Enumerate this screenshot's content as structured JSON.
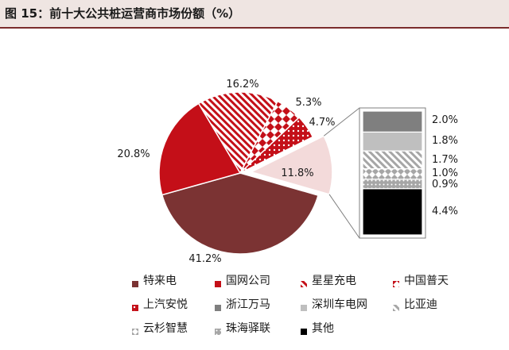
{
  "figure": {
    "title": "图 15：前十大公共桩运营商市场份额（%）"
  },
  "chart_data": {
    "type": "pie",
    "title": "图 15：前十大公共桩运营商市场份额（%）",
    "unit": "%",
    "slices": [
      {
        "name": "特来电",
        "value": 41.2,
        "label": "41.2%",
        "color": "#7b3333",
        "pattern": "solid"
      },
      {
        "name": "国网公司",
        "value": 20.8,
        "label": "20.8%",
        "color": "#c40f18",
        "pattern": "solid"
      },
      {
        "name": "星星充电",
        "value": 16.2,
        "label": "16.2%",
        "color": "#c40f18",
        "pattern": "diagonal"
      },
      {
        "name": "中国普天",
        "value": 5.3,
        "label": "5.3%",
        "color": "#c40f18",
        "pattern": "diamond"
      },
      {
        "name": "上汽安悦",
        "value": 4.7,
        "label": "4.7%",
        "color": "#c40f18",
        "pattern": "dots"
      },
      {
        "name": "浙江万马",
        "value": 11.8,
        "label": "11.8%",
        "color": "#f3dada",
        "pattern": "solid",
        "exploded": true
      }
    ],
    "breakdown": {
      "of": "浙江万马",
      "items": [
        {
          "name": "深圳车电网",
          "value": 2.0,
          "label": "2.0%",
          "color": "#7f7f7f",
          "pattern": "solid"
        },
        {
          "name": "比亚迪",
          "value": 1.8,
          "label": "1.8%",
          "color": "#bfbfbf",
          "pattern": "solid"
        },
        {
          "name": "云杉智慧",
          "value": 1.7,
          "label": "1.7%",
          "color": "#a6a6a6",
          "pattern": "diagonal"
        },
        {
          "name": "珠海驿联",
          "value": 1.0,
          "label": "1.0%",
          "color": "#a6a6a6",
          "pattern": "diamond"
        },
        {
          "name": "其他-0.9",
          "value": 0.9,
          "label": "0.9%",
          "color": "#a6a6a6",
          "pattern": "dots"
        },
        {
          "name": "其他",
          "value": 4.4,
          "label": "4.4%",
          "color": "#000000",
          "pattern": "solid"
        }
      ]
    },
    "legend": [
      {
        "name": "特来电",
        "color": "#7b3333",
        "pattern": "solid"
      },
      {
        "name": "国网公司",
        "color": "#c40f18",
        "pattern": "solid"
      },
      {
        "name": "星星充电",
        "color": "#c40f18",
        "pattern": "diagonal"
      },
      {
        "name": "中国普天",
        "color": "#c40f18",
        "pattern": "diamond"
      },
      {
        "name": "上汽安悦",
        "color": "#c40f18",
        "pattern": "dots"
      },
      {
        "name": "浙江万马",
        "color": "#7f7f7f",
        "pattern": "solid"
      },
      {
        "name": "深圳车电网",
        "color": "#bfbfbf",
        "pattern": "solid"
      },
      {
        "name": "比亚迪",
        "color": "#a6a6a6",
        "pattern": "diagonal"
      },
      {
        "name": "云杉智慧",
        "color": "#a6a6a6",
        "pattern": "diamond"
      },
      {
        "name": "珠海驿联",
        "color": "#a6a6a6",
        "pattern": "dots"
      },
      {
        "name": "其他",
        "color": "#000000",
        "pattern": "solid"
      }
    ]
  }
}
